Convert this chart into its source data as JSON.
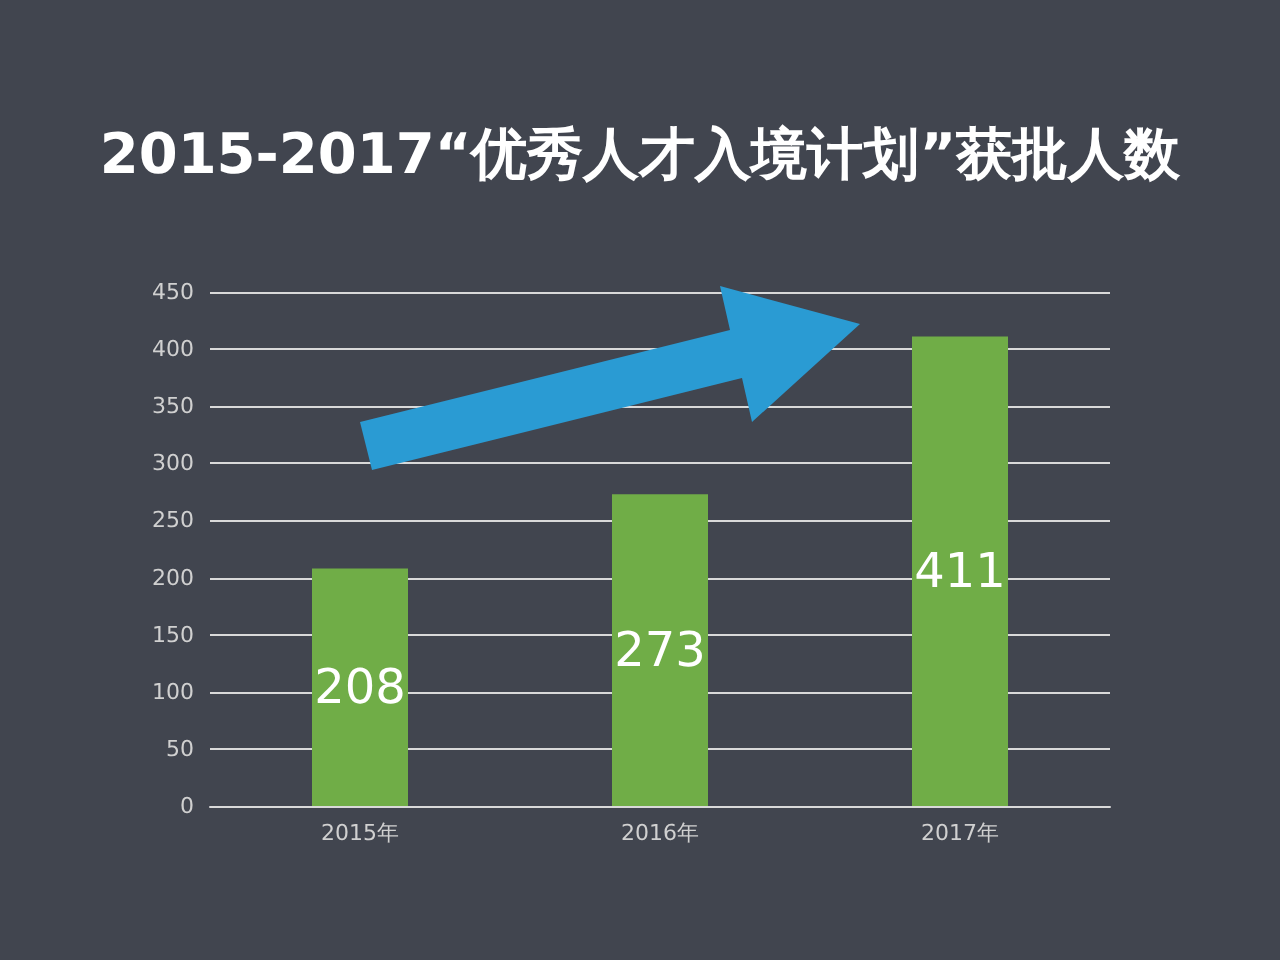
{
  "chart_data": {
    "type": "bar",
    "title": "2015-2017“优秀人才入境计划”获批人数",
    "categories": [
      "2015年",
      "2016年",
      "2017年"
    ],
    "values": [
      208,
      273,
      411
    ],
    "color": "#70ad47",
    "ylim": [
      0,
      450
    ],
    "yticks": [
      0,
      50,
      100,
      150,
      200,
      250,
      300,
      350,
      400,
      450
    ],
    "grid": "y",
    "data_labels": true
  }
}
